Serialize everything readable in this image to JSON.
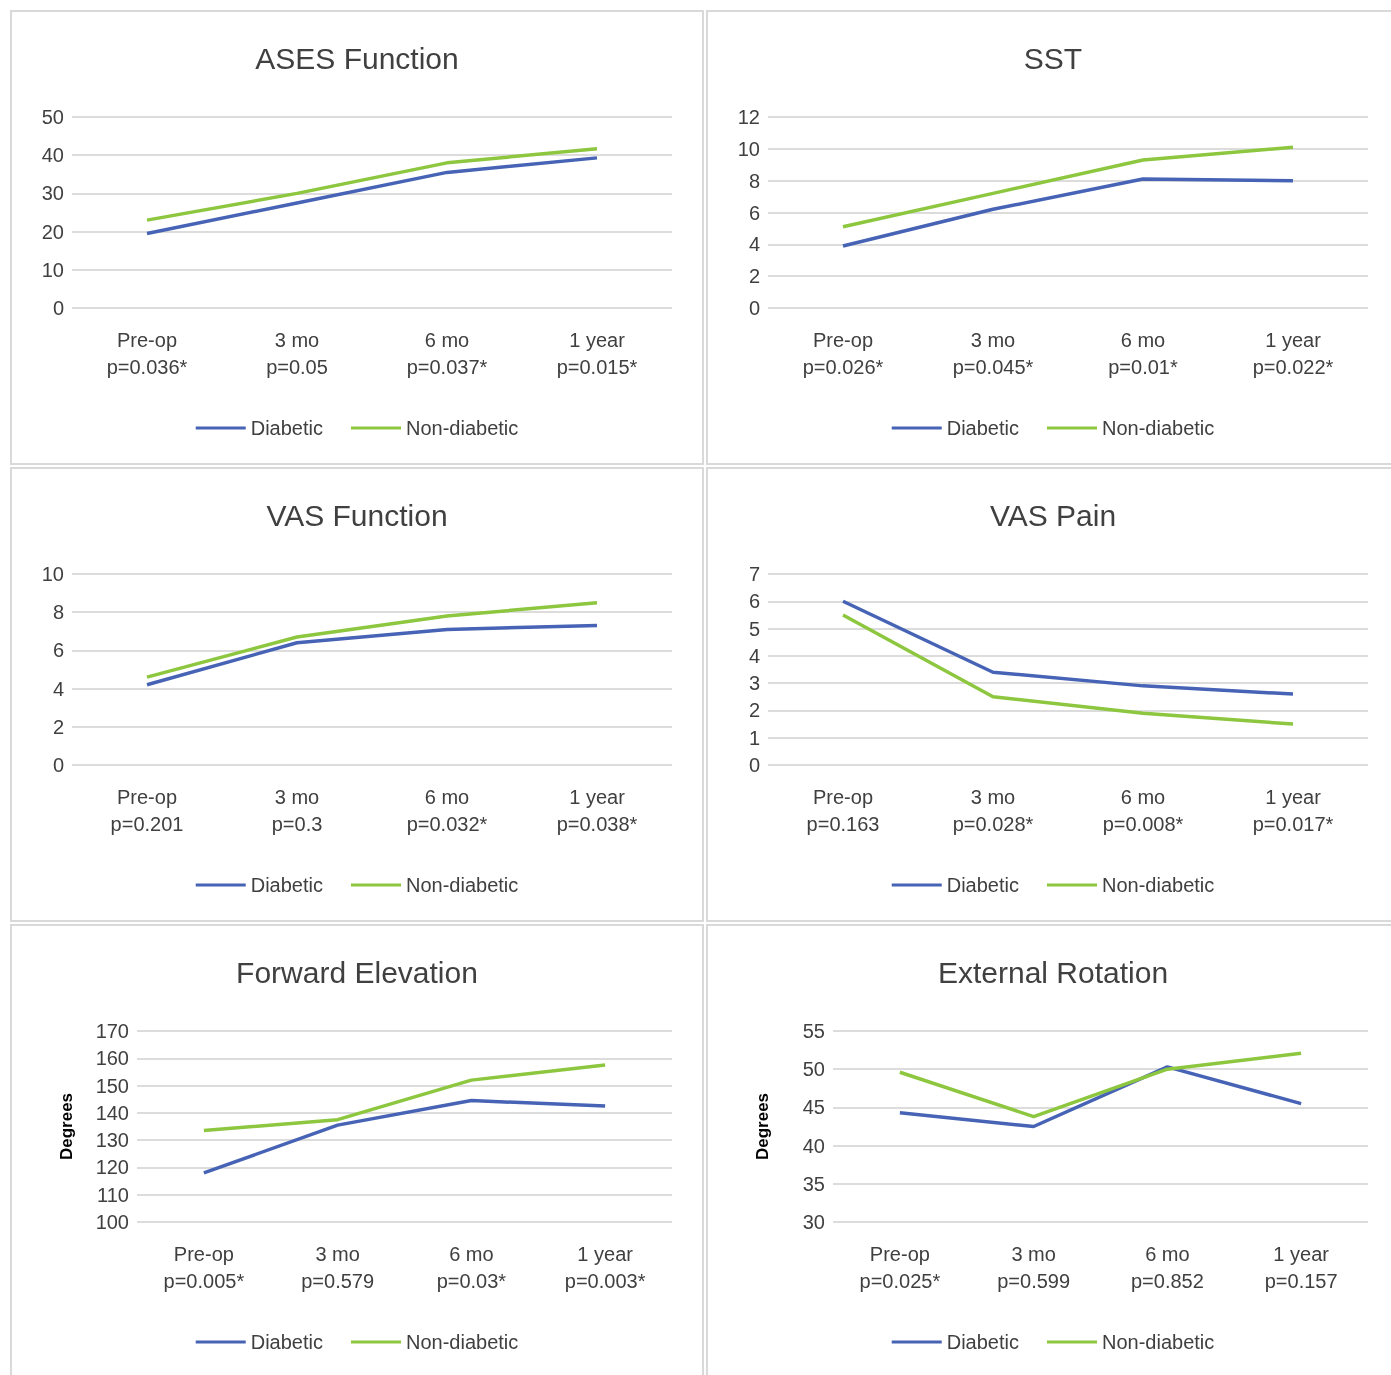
{
  "chart_data": [
    {
      "type": "line",
      "title": "ASES Function",
      "categories": [
        "Pre-op\np=0.036*",
        "3 mo\np=0.05",
        "6 mo\np=0.037*",
        "1 year\np=0.015*"
      ],
      "series": [
        {
          "name": "Diabetic",
          "color": "#4763b5",
          "values": [
            19.5,
            27.5,
            35.5,
            39.3
          ]
        },
        {
          "name": "Non-diabetic",
          "color": "#8dc63f",
          "values": [
            23,
            30,
            38,
            41.7
          ]
        }
      ],
      "ylim": [
        0,
        50
      ],
      "yticks": [
        0,
        10,
        20,
        30,
        40,
        50
      ],
      "grid": "y",
      "legend": "bottom",
      "marker": "none"
    },
    {
      "type": "line",
      "title": "SST",
      "categories": [
        "Pre-op\np=0.026*",
        "3 mo\np=0.045*",
        "6 mo\np=0.01*",
        "1 year\np=0.022*"
      ],
      "series": [
        {
          "name": "Diabetic",
          "color": "#4763b5",
          "values": [
            3.9,
            6.2,
            8.1,
            8.0
          ]
        },
        {
          "name": "Non-diabetic",
          "color": "#8dc63f",
          "values": [
            5.1,
            7.2,
            9.3,
            10.1
          ]
        }
      ],
      "ylim": [
        0,
        12
      ],
      "yticks": [
        0,
        2,
        4,
        6,
        8,
        10,
        12
      ],
      "grid": "y",
      "legend": "bottom",
      "marker": "none"
    },
    {
      "type": "line",
      "title": "VAS Function",
      "categories": [
        "Pre-op\np=0.201",
        "3 mo\np=0.3",
        "6 mo\np=0.032*",
        "1 year\np=0.038*"
      ],
      "series": [
        {
          "name": "Diabetic",
          "color": "#4763b5",
          "values": [
            4.2,
            6.4,
            7.1,
            7.3
          ]
        },
        {
          "name": "Non-diabetic",
          "color": "#8dc63f",
          "values": [
            4.6,
            6.7,
            7.8,
            8.5
          ]
        }
      ],
      "ylim": [
        0,
        10
      ],
      "yticks": [
        0,
        2,
        4,
        6,
        8,
        10
      ],
      "grid": "y",
      "legend": "bottom",
      "marker": "none"
    },
    {
      "type": "line",
      "title": "VAS Pain",
      "categories": [
        "Pre-op\np=0.163",
        "3 mo\np=0.028*",
        "6 mo\np=0.008*",
        "1 year\np=0.017*"
      ],
      "series": [
        {
          "name": "Diabetic",
          "color": "#4763b5",
          "values": [
            6.0,
            3.4,
            2.9,
            2.6
          ]
        },
        {
          "name": "Non-diabetic",
          "color": "#8dc63f",
          "values": [
            5.5,
            2.5,
            1.9,
            1.5
          ]
        }
      ],
      "ylim": [
        0,
        7
      ],
      "yticks": [
        0,
        1,
        2,
        3,
        4,
        5,
        6,
        7
      ],
      "grid": "y",
      "legend": "bottom",
      "marker": "none"
    },
    {
      "type": "line",
      "title": "Forward Elevation",
      "ylabel": "Degrees",
      "categories": [
        "Pre-op\np=0.005*",
        "3 mo\np=0.579",
        "6 mo\np=0.03*",
        "1 year\np=0.003*"
      ],
      "series": [
        {
          "name": "Diabetic",
          "color": "#4763b5",
          "values": [
            118,
            135.5,
            144.5,
            142.5
          ]
        },
        {
          "name": "Non-diabetic",
          "color": "#8dc63f",
          "values": [
            133.5,
            137.5,
            152,
            157.5
          ]
        }
      ],
      "ylim": [
        100,
        170
      ],
      "yticks": [
        100,
        110,
        120,
        130,
        140,
        150,
        160,
        170
      ],
      "grid": "y",
      "legend": "bottom",
      "marker": "none"
    },
    {
      "type": "line",
      "title": "External Rotation",
      "ylabel": "Degrees",
      "categories": [
        "Pre-op\np=0.025*",
        "3 mo\np=0.599",
        "6 mo\np=0.852",
        "1 year\np=0.157"
      ],
      "series": [
        {
          "name": "Diabetic",
          "color": "#4763b5",
          "values": [
            44.3,
            42.5,
            50.3,
            45.5
          ]
        },
        {
          "name": "Non-diabetic",
          "color": "#8dc63f",
          "values": [
            49.6,
            43.8,
            50,
            52.1
          ]
        }
      ],
      "ylim": [
        30,
        55
      ],
      "yticks": [
        30,
        35,
        40,
        45,
        50,
        55
      ],
      "grid": "y",
      "legend": "bottom",
      "marker": "none"
    }
  ]
}
